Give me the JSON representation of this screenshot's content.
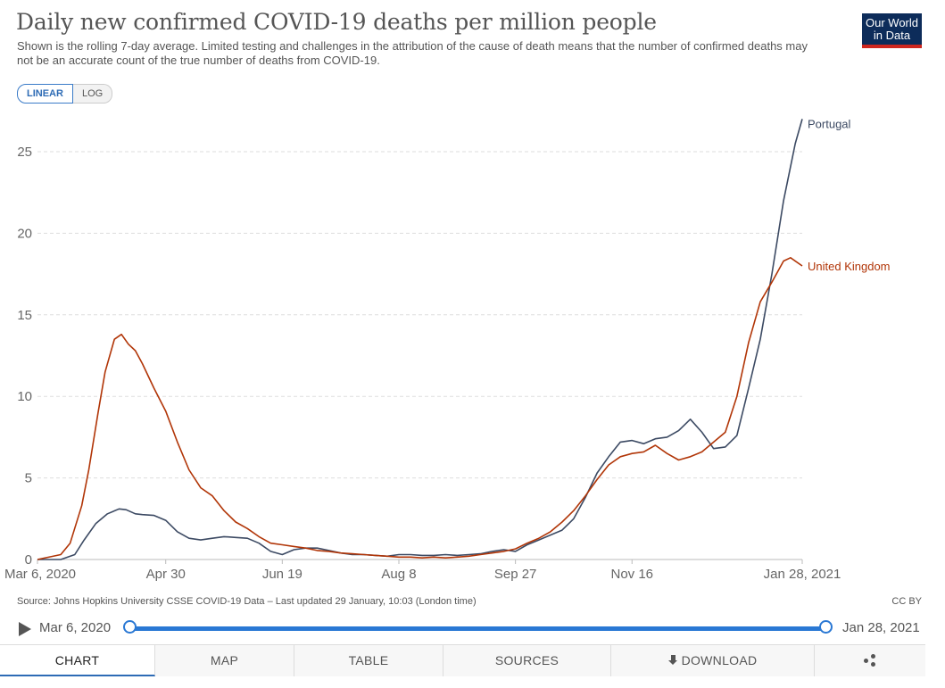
{
  "header": {
    "title": "Daily new confirmed COVID-19 deaths per million people",
    "subtitle": "Shown is the rolling 7-day average. Limited testing and challenges in the attribution of the cause of death means that the number of confirmed deaths may not be an accurate count of the true number of deaths from COVID-19.",
    "logo_line1": "Our World",
    "logo_line2": "in Data"
  },
  "scale_toggle": {
    "linear_label": "LINEAR",
    "log_label": "LOG",
    "selected": "LINEAR"
  },
  "colors": {
    "portugal": "#3c4a63",
    "united_kingdom": "#b13507",
    "accent": "#2a78d4",
    "logo_bg": "#0d2c5a",
    "logo_bar": "#ce261e"
  },
  "chart_data": {
    "type": "line",
    "x_start": "Mar 6, 2020",
    "x_end": "Jan 28, 2021",
    "x_tick_labels": [
      "Mar 6, 2020",
      "Apr 30",
      "Jun 19",
      "Aug 8",
      "Sep 27",
      "Nov 16",
      "Jan 28, 2021"
    ],
    "x_tick_dates": [
      "2020-03-06",
      "2020-04-30",
      "2020-06-19",
      "2020-08-08",
      "2020-09-27",
      "2020-11-16",
      "2021-01-28"
    ],
    "y_ticks": [
      0,
      5,
      10,
      15,
      20,
      25
    ],
    "ylim": [
      0,
      27
    ],
    "grid": "horizontal dashed",
    "series": [
      {
        "name": "Portugal",
        "color": "#3c4a63",
        "x": [
          "2020-03-06",
          "2020-03-16",
          "2020-03-22",
          "2020-03-26",
          "2020-03-31",
          "2020-04-05",
          "2020-04-10",
          "2020-04-13",
          "2020-04-17",
          "2020-04-20",
          "2020-04-25",
          "2020-04-30",
          "2020-05-05",
          "2020-05-10",
          "2020-05-15",
          "2020-05-20",
          "2020-05-25",
          "2020-05-30",
          "2020-06-04",
          "2020-06-09",
          "2020-06-14",
          "2020-06-19",
          "2020-06-24",
          "2020-06-29",
          "2020-07-04",
          "2020-07-09",
          "2020-07-14",
          "2020-07-19",
          "2020-07-24",
          "2020-07-29",
          "2020-08-03",
          "2020-08-08",
          "2020-08-13",
          "2020-08-18",
          "2020-08-23",
          "2020-08-28",
          "2020-09-02",
          "2020-09-07",
          "2020-09-12",
          "2020-09-17",
          "2020-09-22",
          "2020-09-27",
          "2020-10-02",
          "2020-10-07",
          "2020-10-12",
          "2020-10-17",
          "2020-10-22",
          "2020-10-27",
          "2020-11-01",
          "2020-11-06",
          "2020-11-11",
          "2020-11-16",
          "2020-11-21",
          "2020-11-26",
          "2020-12-01",
          "2020-12-06",
          "2020-12-11",
          "2020-12-16",
          "2020-12-21",
          "2020-12-26",
          "2020-12-31",
          "2021-01-05",
          "2021-01-10",
          "2021-01-15",
          "2021-01-20",
          "2021-01-25",
          "2021-01-28"
        ],
        "y": [
          0,
          0,
          0.3,
          1.2,
          2.2,
          2.8,
          3.1,
          3.05,
          2.8,
          2.75,
          2.7,
          2.4,
          1.7,
          1.3,
          1.2,
          1.3,
          1.4,
          1.35,
          1.3,
          1.0,
          0.5,
          0.3,
          0.6,
          0.7,
          0.7,
          0.55,
          0.4,
          0.3,
          0.3,
          0.25,
          0.2,
          0.3,
          0.3,
          0.25,
          0.25,
          0.3,
          0.25,
          0.3,
          0.35,
          0.5,
          0.6,
          0.5,
          0.9,
          1.2,
          1.5,
          1.8,
          2.5,
          3.8,
          5.3,
          6.3,
          7.2,
          7.3,
          7.1,
          7.4,
          7.5,
          7.9,
          8.6,
          7.8,
          6.8,
          6.9,
          7.6,
          10.5,
          13.5,
          17.5,
          22.0,
          25.5,
          27.0
        ]
      },
      {
        "name": "United Kingdom",
        "color": "#b13507",
        "x": [
          "2020-03-06",
          "2020-03-16",
          "2020-03-20",
          "2020-03-25",
          "2020-03-28",
          "2020-04-01",
          "2020-04-04",
          "2020-04-08",
          "2020-04-11",
          "2020-04-14",
          "2020-04-17",
          "2020-04-20",
          "2020-04-25",
          "2020-04-30",
          "2020-05-05",
          "2020-05-10",
          "2020-05-15",
          "2020-05-20",
          "2020-05-25",
          "2020-05-30",
          "2020-06-04",
          "2020-06-09",
          "2020-06-14",
          "2020-06-19",
          "2020-06-24",
          "2020-06-29",
          "2020-07-04",
          "2020-07-09",
          "2020-07-14",
          "2020-07-19",
          "2020-07-24",
          "2020-07-29",
          "2020-08-03",
          "2020-08-08",
          "2020-08-13",
          "2020-08-18",
          "2020-08-23",
          "2020-08-28",
          "2020-09-02",
          "2020-09-07",
          "2020-09-12",
          "2020-09-17",
          "2020-09-22",
          "2020-09-27",
          "2020-10-02",
          "2020-10-07",
          "2020-10-12",
          "2020-10-17",
          "2020-10-22",
          "2020-10-27",
          "2020-11-01",
          "2020-11-06",
          "2020-11-11",
          "2020-11-16",
          "2020-11-21",
          "2020-11-26",
          "2020-12-01",
          "2020-12-06",
          "2020-12-11",
          "2020-12-16",
          "2020-12-21",
          "2020-12-26",
          "2020-12-31",
          "2021-01-05",
          "2021-01-10",
          "2021-01-15",
          "2021-01-20",
          "2021-01-23",
          "2021-01-28"
        ],
        "y": [
          0,
          0.3,
          1.0,
          3.3,
          5.5,
          9.0,
          11.5,
          13.5,
          13.8,
          13.2,
          12.8,
          12.0,
          10.5,
          9.1,
          7.2,
          5.5,
          4.4,
          3.9,
          3.0,
          2.3,
          1.9,
          1.4,
          1.0,
          0.9,
          0.8,
          0.7,
          0.55,
          0.5,
          0.4,
          0.35,
          0.3,
          0.25,
          0.2,
          0.15,
          0.15,
          0.1,
          0.15,
          0.1,
          0.15,
          0.2,
          0.3,
          0.4,
          0.5,
          0.65,
          1.0,
          1.3,
          1.7,
          2.3,
          3.0,
          3.9,
          4.9,
          5.8,
          6.3,
          6.5,
          6.6,
          7.0,
          6.5,
          6.1,
          6.3,
          6.6,
          7.2,
          7.8,
          10.0,
          13.3,
          15.8,
          17.0,
          18.3,
          18.5,
          18.0
        ]
      }
    ]
  },
  "footer": {
    "source": "Source: Johns Hopkins University CSSE COVID-19 Data – Last updated 29 January, 10:03 (London time)",
    "license": "CC BY"
  },
  "timeline": {
    "start_label": "Mar 6, 2020",
    "end_label": "Jan 28, 2021"
  },
  "tabs": [
    {
      "label": "CHART",
      "active": true
    },
    {
      "label": "MAP",
      "active": false
    },
    {
      "label": "TABLE",
      "active": false
    },
    {
      "label": "SOURCES",
      "active": false
    },
    {
      "label": "DOWNLOAD",
      "active": false
    }
  ],
  "icons": {
    "play": "play-icon",
    "download": "download-icon",
    "share": "share-icon"
  }
}
